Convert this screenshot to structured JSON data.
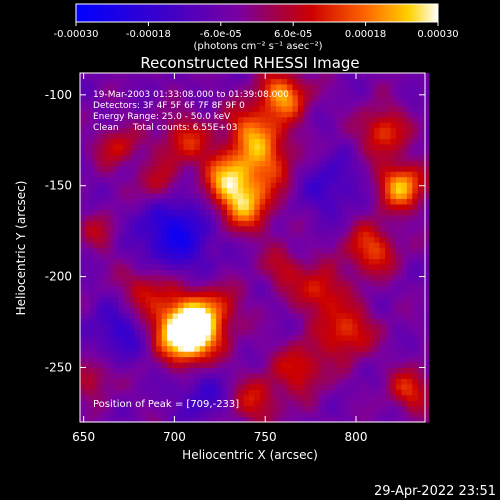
{
  "chart_data": {
    "type": "heatmap",
    "title": "Reconstructed RHESSI Image",
    "xlabel": "Heliocentric X (arcsec)",
    "ylabel": "Heliocentric Y (arcsec)",
    "xlim": [
      648,
      838
    ],
    "ylim": [
      -280,
      -88
    ],
    "xticks": [
      650,
      700,
      750,
      800
    ],
    "yticks": [
      -100,
      -150,
      -200,
      -250
    ],
    "colorbar": {
      "range": [
        -0.0003,
        0.0003
      ],
      "ticks": [
        "-0.00030",
        "-0.00018",
        "-6.0e-05",
        "6.0e-05",
        "0.00018",
        "0.00030"
      ],
      "units": "(photons cm⁻² s⁻¹ asec⁻²)"
    },
    "annotations": [
      "19-Mar-2003 01:33:08.000 to 01:39:08.000",
      "Detectors: 3F 4F 5F 6F 7F 8F 9F 0",
      "Energy Range: 25.0 - 50.0 keV",
      "Clean     Total counts: 6.55E+03"
    ],
    "peak_label": "Position of Peak = [709,-233]",
    "peak": [
      709,
      -233
    ],
    "blobs": [
      {
        "x": 709,
        "y": -233,
        "amp": 1.0,
        "s": 10
      },
      {
        "x": 702,
        "y": -225,
        "amp": 0.65,
        "s": 12
      },
      {
        "x": 722,
        "y": -218,
        "amp": 0.45,
        "s": 10
      },
      {
        "x": 683,
        "y": -206,
        "amp": 0.4,
        "s": 10
      },
      {
        "x": 738,
        "y": -160,
        "amp": 0.72,
        "s": 11
      },
      {
        "x": 728,
        "y": -145,
        "amp": 0.6,
        "s": 10
      },
      {
        "x": 750,
        "y": -135,
        "amp": 0.55,
        "s": 12
      },
      {
        "x": 742,
        "y": -118,
        "amp": 0.5,
        "s": 10
      },
      {
        "x": 760,
        "y": -100,
        "amp": 0.75,
        "s": 9
      },
      {
        "x": 705,
        "y": -125,
        "amp": 0.45,
        "s": 10
      },
      {
        "x": 690,
        "y": -150,
        "amp": 0.4,
        "s": 9
      },
      {
        "x": 668,
        "y": -128,
        "amp": 0.4,
        "s": 8
      },
      {
        "x": 815,
        "y": -120,
        "amp": 0.55,
        "s": 9
      },
      {
        "x": 825,
        "y": -150,
        "amp": 0.8,
        "s": 9
      },
      {
        "x": 808,
        "y": -185,
        "amp": 0.55,
        "s": 10
      },
      {
        "x": 795,
        "y": -230,
        "amp": 0.55,
        "s": 10
      },
      {
        "x": 780,
        "y": -208,
        "amp": 0.5,
        "s": 9
      },
      {
        "x": 770,
        "y": -250,
        "amp": 0.45,
        "s": 10
      },
      {
        "x": 745,
        "y": -268,
        "amp": 0.4,
        "s": 10
      },
      {
        "x": 830,
        "y": -262,
        "amp": 0.5,
        "s": 8
      },
      {
        "x": 655,
        "y": -255,
        "amp": 0.35,
        "s": 8
      },
      {
        "x": 760,
        "y": -195,
        "amp": 0.35,
        "s": 8
      },
      {
        "x": 660,
        "y": -175,
        "amp": 0.3,
        "s": 8
      },
      {
        "x": 700,
        "y": -175,
        "amp": -0.55,
        "s": 16
      },
      {
        "x": 670,
        "y": -230,
        "amp": -0.35,
        "s": 12
      },
      {
        "x": 785,
        "y": -150,
        "amp": -0.3,
        "s": 12
      },
      {
        "x": 715,
        "y": -265,
        "amp": -0.3,
        "s": 10
      }
    ]
  },
  "footer": {
    "date": "29-Apr-2022 23:51"
  }
}
